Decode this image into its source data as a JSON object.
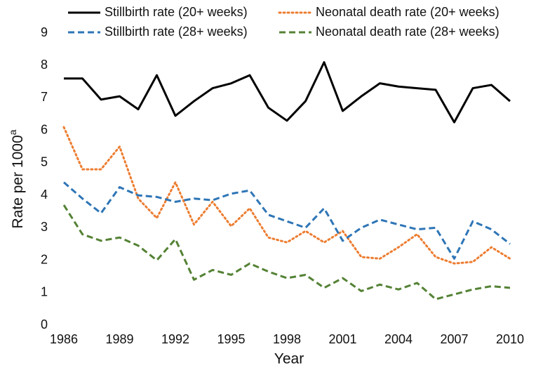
{
  "chart_data": {
    "type": "line",
    "x_label": "Year",
    "y_label": "Rate per 1000",
    "y_label_sup": "a",
    "x": [
      1986,
      1987,
      1988,
      1989,
      1990,
      1991,
      1992,
      1993,
      1994,
      1995,
      1996,
      1997,
      1998,
      1999,
      2000,
      2001,
      2002,
      2003,
      2004,
      2005,
      2006,
      2007,
      2008,
      2009,
      2010
    ],
    "xlim": [
      1986,
      2010
    ],
    "xticks": [
      1986,
      1989,
      1992,
      1995,
      1998,
      2001,
      2004,
      2007,
      2010
    ],
    "ylim": [
      0,
      9
    ],
    "yticks": [
      0,
      1,
      2,
      3,
      4,
      5,
      6,
      7,
      8,
      9
    ],
    "legend": "top",
    "series": [
      {
        "name": "Stillbirth rate (20+ weeks)",
        "color": "#000000",
        "dash": "solid",
        "values": [
          7.6,
          7.6,
          6.95,
          7.05,
          6.65,
          7.7,
          6.45,
          6.9,
          7.3,
          7.45,
          7.7,
          6.7,
          6.3,
          6.9,
          8.1,
          6.6,
          7.05,
          7.45,
          7.35,
          7.3,
          7.25,
          6.25,
          7.3,
          7.4,
          6.9
        ]
      },
      {
        "name": "Neonatal death rate (20+ weeks)",
        "color": "#ed7d31",
        "dash": "dotted",
        "values": [
          6.1,
          4.8,
          4.8,
          5.5,
          3.9,
          3.3,
          4.4,
          3.1,
          3.8,
          3.05,
          3.6,
          2.7,
          2.55,
          2.9,
          2.55,
          2.9,
          2.1,
          2.05,
          2.4,
          2.8,
          2.1,
          1.9,
          1.95,
          2.4,
          2.05
        ]
      },
      {
        "name": "Stillbirth rate (28+ weeks)",
        "color": "#2e75b6",
        "dash": "dashed",
        "values": [
          4.4,
          3.9,
          3.45,
          4.25,
          4.0,
          3.95,
          3.8,
          3.9,
          3.85,
          4.05,
          4.15,
          3.4,
          3.2,
          3.0,
          3.6,
          2.6,
          3.0,
          3.25,
          3.1,
          2.95,
          3.0,
          2.05,
          3.2,
          2.95,
          2.5
        ]
      },
      {
        "name": "Neonatal death rate (28+ weeks)",
        "color": "#548235",
        "dash": "dashed",
        "values": [
          3.7,
          2.8,
          2.6,
          2.7,
          2.45,
          2.0,
          2.65,
          1.4,
          1.7,
          1.55,
          1.9,
          1.65,
          1.45,
          1.55,
          1.15,
          1.45,
          1.05,
          1.25,
          1.1,
          1.3,
          0.8,
          0.95,
          1.1,
          1.2,
          1.15
        ]
      }
    ]
  }
}
